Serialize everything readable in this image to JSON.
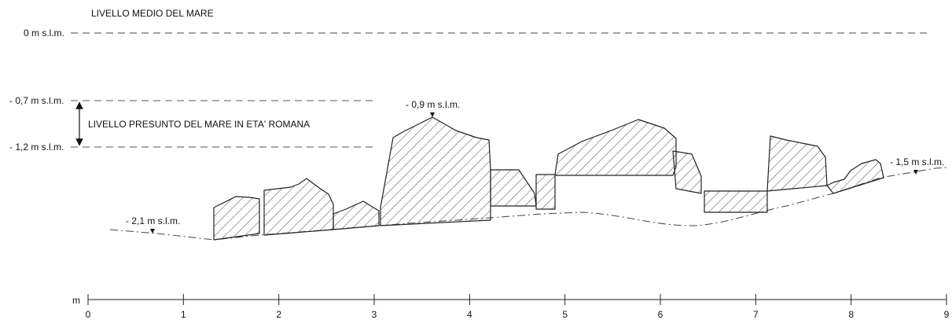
{
  "labels": {
    "mean_sea_level": "LIVELLO MEDIO DEL MARE",
    "presumed_sea_level": "LIVELLO PRESUNTO DEL MARE IN ETA' ROMANA"
  },
  "elevations": {
    "zero": "0 m s.l.m.",
    "upper_roman": "- 0,7 m s.l.m.",
    "lower_roman": "- 1,2 m s.l.m.",
    "peak": "- 0,9 m s.l.m.",
    "left_bottom": "- 2,1 m s.l.m.",
    "right_bottom": "- 1,5 m s.l.m."
  },
  "scale": {
    "unit": "m",
    "ticks": [
      "0",
      "1",
      "2",
      "3",
      "4",
      "5",
      "6",
      "7",
      "8",
      "9"
    ]
  }
}
